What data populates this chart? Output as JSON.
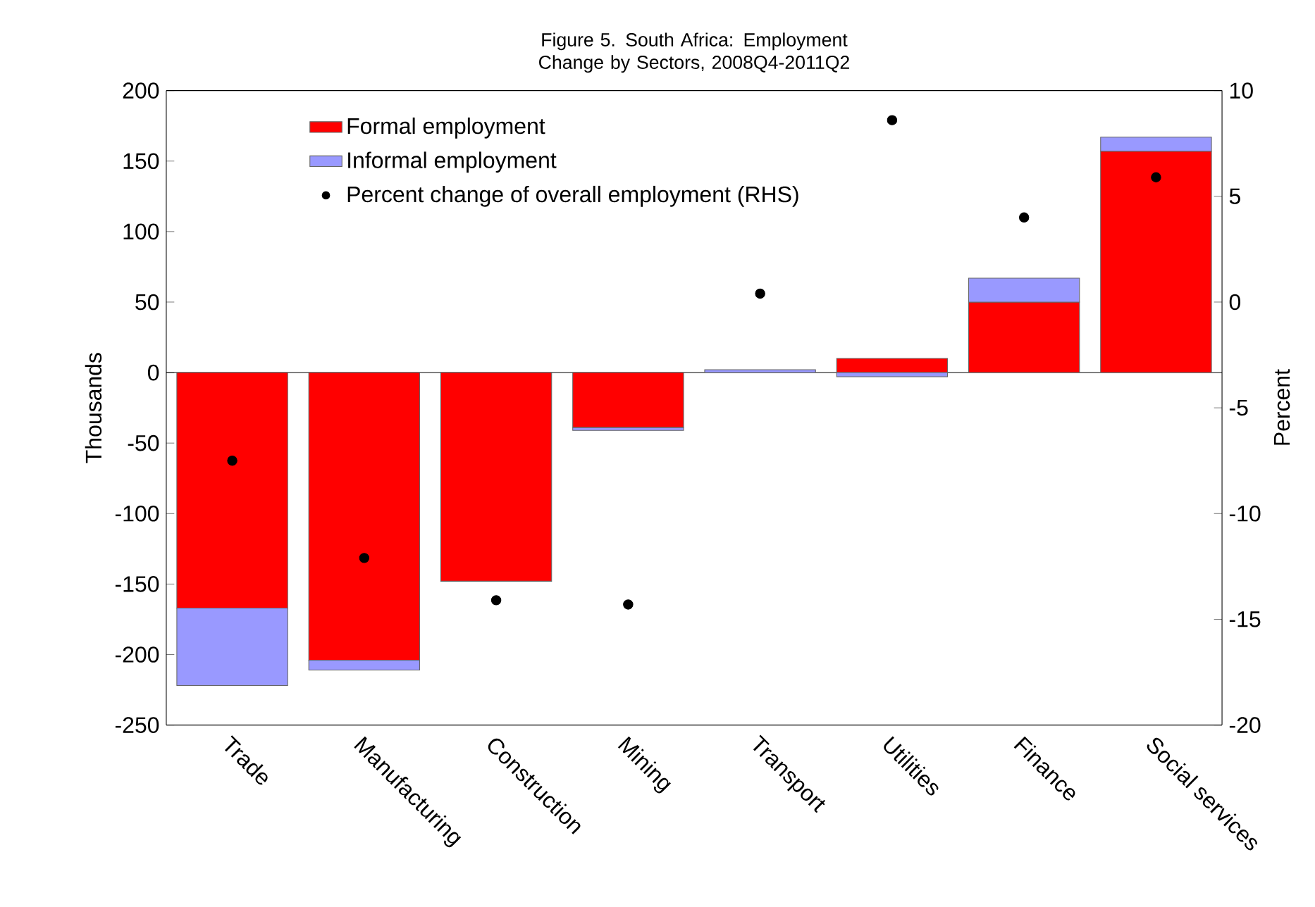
{
  "chart_data": {
    "type": "bar",
    "title": "Figure 5. South Africa: Employment Change by Sectors, 2008Q4-2011Q2",
    "ylabel": "Thousands",
    "y2label": "Percent",
    "categories": [
      "Trade",
      "Manufacturing",
      "Construction",
      "Mining",
      "Transport",
      "Utilities",
      "Finance",
      "Social services"
    ],
    "stacked": true,
    "series": [
      {
        "name": "Formal employment",
        "color": "#ff0000",
        "values": [
          -167,
          -204,
          -148,
          -39,
          0,
          10,
          50,
          157
        ]
      },
      {
        "name": "Informal employment",
        "color": "#9999ff",
        "values": [
          -55,
          -7,
          0,
          -2,
          2,
          -3,
          17,
          10
        ]
      },
      {
        "name": "Percent change of overall employment (RHS)",
        "type": "scatter",
        "axis": "y2",
        "color": "#000000",
        "values": [
          -7.5,
          -12.1,
          -14.1,
          -14.3,
          0.4,
          8.6,
          4.0,
          5.9
        ]
      }
    ],
    "ylim": [
      -250,
      200
    ],
    "yticks": [
      -250,
      -200,
      -150,
      -100,
      -50,
      0,
      50,
      100,
      150,
      200
    ],
    "y2lim": [
      -20,
      10
    ],
    "y2ticks": [
      -20,
      -15,
      -10,
      -5,
      0,
      5,
      10
    ],
    "ref_lines": [
      {
        "axis": "y",
        "value": 0,
        "color": "#000000"
      }
    ],
    "legend": "top left"
  }
}
